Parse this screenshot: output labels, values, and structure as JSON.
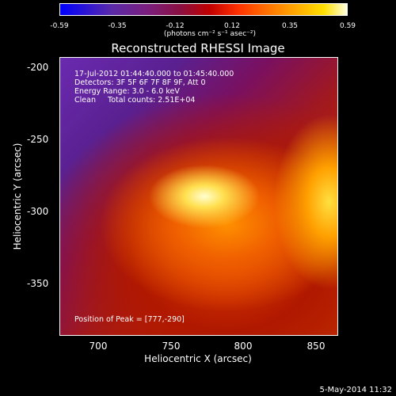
{
  "colorbar": {
    "ticks": [
      "-0.59",
      "-0.35",
      "-0.12",
      "0.12",
      "0.35",
      "0.59"
    ],
    "unit": "(photons cm⁻² s⁻¹ asec⁻²)"
  },
  "title": "Reconstructed RHESSI Image",
  "info": {
    "line1": "17-Jul-2012 01:44:40.000 to 01:45:40.000",
    "line2": "Detectors: 3F 5F 6F 7F 8F 9F, Att 0",
    "line3": "Energy Range: 3.0 - 6.0 keV",
    "line4": "Clean     Total counts: 2.51E+04",
    "peak": "Position of Peak = [777,-290]"
  },
  "chart_data": {
    "type": "heatmap",
    "title": "Reconstructed RHESSI Image",
    "xlabel": "Heliocentric X (arcsec)",
    "ylabel": "Heliocentric Y (arcsec)",
    "xlim": [
      673,
      865
    ],
    "ylim": [
      -385,
      -193
    ],
    "xticks": [
      "700",
      "750",
      "800",
      "850"
    ],
    "yticks": [
      "-200",
      "-250",
      "-300",
      "-350"
    ],
    "peak": [
      777,
      -290
    ],
    "colorbar_range": [
      -0.59,
      0.59
    ]
  },
  "footer": {
    "date": "5-May-2014 11:32"
  }
}
